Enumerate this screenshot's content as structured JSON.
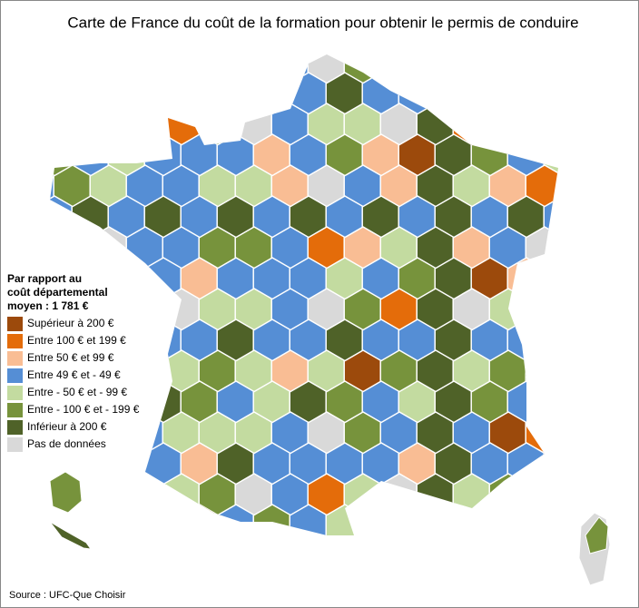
{
  "title": "Carte de France du coût de la formation pour obtenir le permis de conduire",
  "legend": {
    "title": [
      "Par rapport au",
      "coût départemental",
      "moyen : 1 781 €"
    ],
    "items": [
      {
        "label": "Supérieur à 200 €",
        "color": "#9c4a0c"
      },
      {
        "label": "Entre 100 € et 199 €",
        "color": "#e46c0a"
      },
      {
        "label": "Entre 50 € et 99 €",
        "color": "#f9bd94"
      },
      {
        "label": "Entre 49 € et - 49 €",
        "color": "#558ed5"
      },
      {
        "label": "Entre - 50 € et - 99 €",
        "color": "#c3dba0"
      },
      {
        "label": "Entre - 100 € et - 199 €",
        "color": "#77933c"
      },
      {
        "label": "Inférieur à 200 €",
        "color": "#4f6228"
      },
      {
        "label": "Pas de données",
        "color": "#d9d9d9"
      }
    ]
  },
  "source": "Source : UFC-Que Choisir"
}
